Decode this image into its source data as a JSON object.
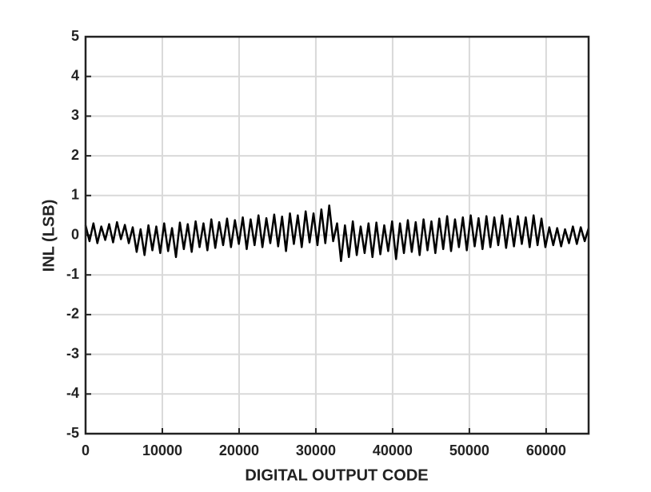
{
  "chart_data": {
    "type": "line",
    "xlabel": "DIGITAL OUTPUT CODE",
    "ylabel": "INL (LSB)",
    "xlim": [
      0,
      65535
    ],
    "ylim": [
      -5,
      5
    ],
    "xticks": [
      0,
      10000,
      20000,
      30000,
      40000,
      50000,
      60000
    ],
    "yticks": [
      -5,
      -4,
      -3,
      -2,
      -1,
      0,
      1,
      2,
      3,
      4,
      5
    ],
    "grid": true,
    "x": [
      0,
      512,
      1024,
      1536,
      2048,
      2560,
      3072,
      3584,
      4096,
      4608,
      5120,
      5632,
      6144,
      6656,
      7168,
      7680,
      8192,
      8704,
      9216,
      9728,
      10240,
      10752,
      11264,
      11776,
      12288,
      12800,
      13312,
      13824,
      14336,
      14848,
      15360,
      15872,
      16384,
      16896,
      17408,
      17920,
      18432,
      18944,
      19456,
      19968,
      20480,
      20992,
      21504,
      22016,
      22528,
      23040,
      23552,
      24064,
      24576,
      25088,
      25600,
      26112,
      26624,
      27136,
      27648,
      28160,
      28672,
      29184,
      29696,
      30208,
      30720,
      31232,
      31744,
      32256,
      32768,
      33280,
      33792,
      34304,
      34816,
      35328,
      35840,
      36352,
      36864,
      37376,
      37888,
      38400,
      38912,
      39424,
      39936,
      40448,
      40960,
      41472,
      41984,
      42496,
      43008,
      43520,
      44032,
      44544,
      45056,
      45568,
      46080,
      46592,
      47104,
      47616,
      48128,
      48640,
      49152,
      49664,
      50176,
      50688,
      51200,
      51712,
      52224,
      52736,
      53248,
      53760,
      54272,
      54784,
      55296,
      55808,
      56320,
      56832,
      57344,
      57856,
      58368,
      58880,
      59392,
      59904,
      60416,
      60928,
      61440,
      61952,
      62464,
      62976,
      63488,
      64000,
      64512,
      65024,
      65535
    ],
    "series": [
      {
        "color": "#000000",
        "values": [
          0.25,
          -0.15,
          0.3,
          -0.2,
          0.22,
          -0.12,
          0.28,
          -0.18,
          0.33,
          -0.1,
          0.26,
          -0.2,
          0.2,
          -0.42,
          0.15,
          -0.5,
          0.25,
          -0.38,
          0.22,
          -0.45,
          0.3,
          -0.4,
          0.18,
          -0.55,
          0.32,
          -0.35,
          0.28,
          -0.42,
          0.35,
          -0.3,
          0.3,
          -0.38,
          0.4,
          -0.32,
          0.33,
          -0.25,
          0.42,
          -0.3,
          0.38,
          -0.22,
          0.45,
          -0.35,
          0.4,
          -0.25,
          0.5,
          -0.3,
          0.43,
          -0.2,
          0.52,
          -0.28,
          0.47,
          -0.4,
          0.55,
          -0.22,
          0.5,
          -0.3,
          0.6,
          -0.18,
          0.55,
          -0.25,
          0.65,
          -0.2,
          0.75,
          -0.15,
          0.3,
          -0.65,
          0.25,
          -0.55,
          0.35,
          -0.5,
          0.22,
          -0.45,
          0.3,
          -0.55,
          0.32,
          -0.48,
          0.25,
          -0.4,
          0.35,
          -0.6,
          0.3,
          -0.45,
          0.38,
          -0.42,
          0.33,
          -0.5,
          0.4,
          -0.38,
          0.35,
          -0.45,
          0.42,
          -0.35,
          0.48,
          -0.4,
          0.4,
          -0.3,
          0.45,
          -0.38,
          0.5,
          -0.28,
          0.43,
          -0.35,
          0.48,
          -0.3,
          0.45,
          -0.25,
          0.5,
          -0.32,
          0.42,
          -0.28,
          0.48,
          -0.22,
          0.45,
          -0.3,
          0.5,
          -0.25,
          0.42,
          -0.3,
          0.2,
          -0.25,
          0.18,
          -0.28,
          0.15,
          -0.2,
          0.22,
          -0.22,
          0.2,
          -0.15,
          0.18
        ]
      }
    ]
  }
}
